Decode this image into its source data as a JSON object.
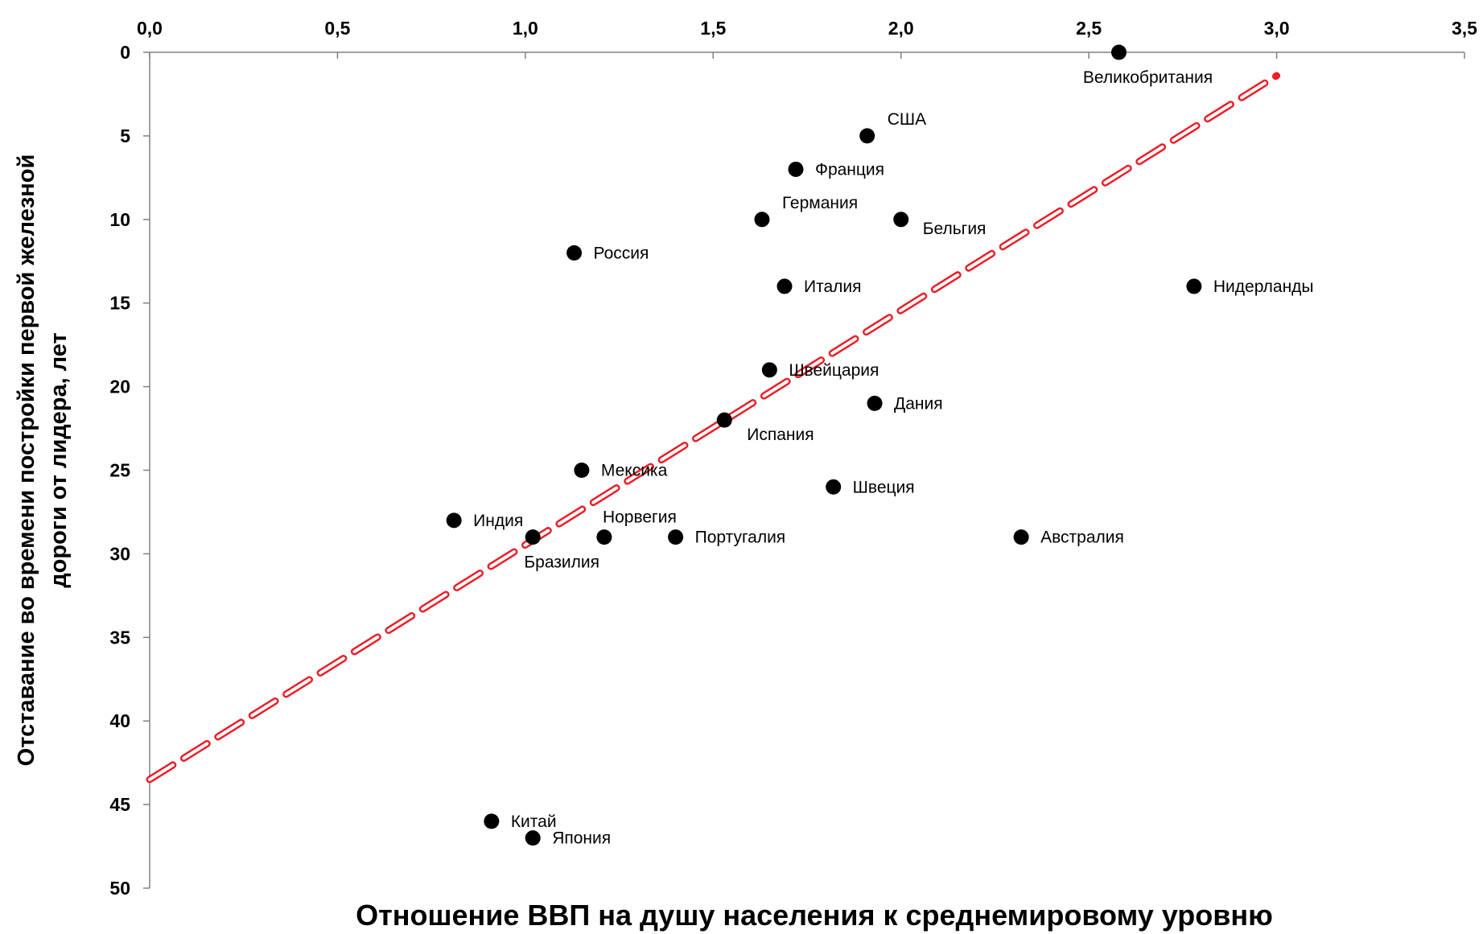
{
  "chart_data": {
    "type": "scatter",
    "title": "",
    "xlabel": "Отношение ВВП на душу населения к среднемировому уровню",
    "ylabel_line1": "Отставание во времени  постройки первой железной",
    "ylabel_line2": "дороги от лидера, лет",
    "xlim": [
      0,
      3.5
    ],
    "ylim": [
      0,
      50
    ],
    "y_inverted": true,
    "x_axis_position": "top",
    "grid": false,
    "x_ticks": [
      {
        "value": 0.0,
        "label": "0,0"
      },
      {
        "value": 0.5,
        "label": "0,5"
      },
      {
        "value": 1.0,
        "label": "1,0"
      },
      {
        "value": 1.5,
        "label": "1,5"
      },
      {
        "value": 2.0,
        "label": "2,0"
      },
      {
        "value": 2.5,
        "label": "2,5"
      },
      {
        "value": 3.0,
        "label": "3,0"
      },
      {
        "value": 3.5,
        "label": "3,5"
      }
    ],
    "y_ticks": [
      {
        "value": 0,
        "label": "0"
      },
      {
        "value": 5,
        "label": "5"
      },
      {
        "value": 10,
        "label": "10"
      },
      {
        "value": 15,
        "label": "15"
      },
      {
        "value": 20,
        "label": "20"
      },
      {
        "value": 25,
        "label": "25"
      },
      {
        "value": 30,
        "label": "30"
      },
      {
        "value": 35,
        "label": "35"
      },
      {
        "value": 40,
        "label": "40"
      },
      {
        "value": 45,
        "label": "45"
      },
      {
        "value": 50,
        "label": "50"
      }
    ],
    "points": [
      {
        "label": "Великобритания",
        "x": 2.58,
        "y": 0,
        "label_pos": "below"
      },
      {
        "label": "США",
        "x": 1.91,
        "y": 5,
        "label_pos": "upper-right"
      },
      {
        "label": "Франция",
        "x": 1.72,
        "y": 7,
        "label_pos": "right"
      },
      {
        "label": "Германия",
        "x": 1.63,
        "y": 10,
        "label_pos": "upper-right"
      },
      {
        "label": "Бельгия",
        "x": 2.0,
        "y": 10,
        "label_pos": "lower-right"
      },
      {
        "label": "Россия",
        "x": 1.13,
        "y": 12,
        "label_pos": "right"
      },
      {
        "label": "Италия",
        "x": 1.69,
        "y": 14,
        "label_pos": "right"
      },
      {
        "label": "Нидерланды",
        "x": 2.78,
        "y": 14,
        "label_pos": "right"
      },
      {
        "label": "Швейцария",
        "x": 1.65,
        "y": 19,
        "label_pos": "right"
      },
      {
        "label": "Дания",
        "x": 1.93,
        "y": 21,
        "label_pos": "right"
      },
      {
        "label": "Испания",
        "x": 1.53,
        "y": 22,
        "label_pos": "lower-right"
      },
      {
        "label": "Мексика",
        "x": 1.15,
        "y": 25,
        "label_pos": "right"
      },
      {
        "label": "Швеция",
        "x": 1.82,
        "y": 26,
        "label_pos": "right"
      },
      {
        "label": "Индия",
        "x": 0.81,
        "y": 28,
        "label_pos": "right"
      },
      {
        "label": "Бразилия",
        "x": 1.02,
        "y": 29,
        "label_pos": "below"
      },
      {
        "label": "Норвегия",
        "x": 1.21,
        "y": 29,
        "label_pos": "above"
      },
      {
        "label": "Португалия",
        "x": 1.4,
        "y": 29,
        "label_pos": "right"
      },
      {
        "label": "Австралия",
        "x": 2.32,
        "y": 29,
        "label_pos": "right"
      },
      {
        "label": "Китай",
        "x": 0.91,
        "y": 46,
        "label_pos": "right"
      },
      {
        "label": "Япония",
        "x": 1.02,
        "y": 47,
        "label_pos": "right"
      }
    ],
    "trendline": {
      "style": "dashed",
      "color": "#e8202a",
      "x": [
        0,
        3.0
      ],
      "y": [
        43.5,
        1.4
      ]
    },
    "colors": {
      "points": "#000000",
      "axis": "#808080",
      "trendline": "#e8202a"
    }
  }
}
